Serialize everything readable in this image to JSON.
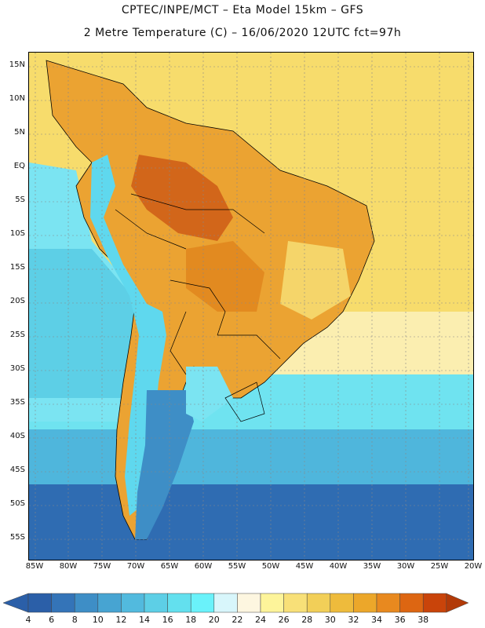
{
  "title": {
    "line1": "CPTEC/INPE/MCT –  Eta Model 15km – GFS",
    "line2": "2 Metre Temperature (C) – 16/06/2020 12UTC fct=97h"
  },
  "map": {
    "lat_labels": [
      "15N",
      "10N",
      "5N",
      "EQ",
      "5S",
      "10S",
      "15S",
      "20S",
      "25S",
      "30S",
      "35S",
      "40S",
      "45S",
      "50S",
      "55S"
    ],
    "lon_labels": [
      "85W",
      "80W",
      "75W",
      "70W",
      "65W",
      "60W",
      "55W",
      "50W",
      "45W",
      "40W",
      "35W",
      "30W",
      "25W",
      "20W"
    ]
  },
  "legend": {
    "values": [
      "4",
      "6",
      "8",
      "10",
      "12",
      "14",
      "16",
      "18",
      "20",
      "22",
      "24",
      "26",
      "28",
      "30",
      "32",
      "34",
      "36",
      "38"
    ],
    "colors": [
      "#2b5fa8",
      "#3474b8",
      "#3e8ec6",
      "#47a4d2",
      "#52bade",
      "#5dcfe6",
      "#63e0ee",
      "#6af2fa",
      "#d8f6fb",
      "#fdf6e0",
      "#fdf49a",
      "#f8e078",
      "#f2cf58",
      "#eebb3c",
      "#eca72a",
      "#e8891f",
      "#dd6612",
      "#c9440a"
    ],
    "low_arrow_color": "#2b5fa8",
    "high_arrow_color": "#b23a08"
  },
  "colors": {
    "ocean_cold": "#2b5fa8",
    "ocean_cool": "#4fb6dc",
    "ocean_mild": "#6fe3f0",
    "ocean_warm": "#f7dc6c",
    "land_hot": "#e89624",
    "land_hotter": "#d2661a",
    "andes": "#5fd8ee"
  }
}
